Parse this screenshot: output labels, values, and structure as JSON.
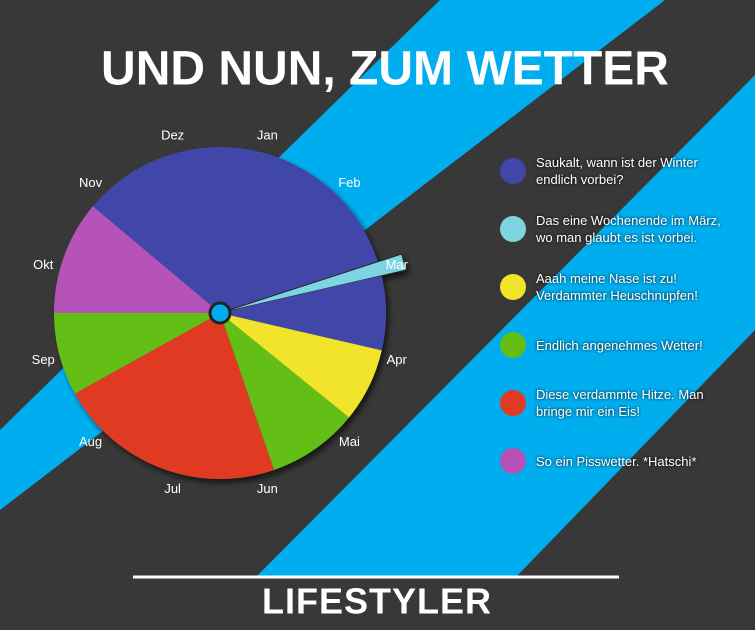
{
  "chart_data": {
    "type": "pie",
    "title": "UND NUN, ZUM WETTER",
    "month_labels": [
      "Jan",
      "Feb",
      "Mar",
      "Apr",
      "Mai",
      "Jun",
      "Jul",
      "Aug",
      "Sep",
      "Okt",
      "Nov",
      "Dez"
    ],
    "legend": [
      {
        "label": "Saukalt, wann ist der Winter endlich vorbei?",
        "color": "#4147a8"
      },
      {
        "label": "Das eine Wochenende im März, wo man glaubt es ist vorbei.",
        "color": "#7fd4e2"
      },
      {
        "label": "Aaah meine Nase ist zu! Verdammter Heuschnupfen!",
        "color": "#f1e42a"
      },
      {
        "label": "Endlich angenehmes Wetter!",
        "color": "#63bf16"
      },
      {
        "label": "Diese verdammte Hitze. Man bringe mir ein Eis!",
        "color": "#e03a24"
      },
      {
        "label": "So ein Pisswetter. *Hatschi*",
        "color": "#b552b8"
      }
    ],
    "slices": [
      {
        "value": 122,
        "color": "#4147a8"
      },
      {
        "value": 5,
        "color": "#7fd4e2",
        "exploded": true
      },
      {
        "value": 26,
        "color": "#4147a8"
      },
      {
        "value": 26,
        "color": "#f1e42a"
      },
      {
        "value": 32,
        "color": "#63bf16"
      },
      {
        "value": 80,
        "color": "#e03a24"
      },
      {
        "value": 29,
        "color": "#63bf16"
      },
      {
        "value": 40,
        "color": "#b552b8"
      }
    ],
    "brand": "LIFESTYLER"
  }
}
